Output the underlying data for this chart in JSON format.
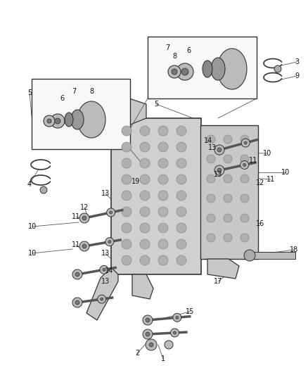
{
  "bg_color": "#ffffff",
  "figsize": [
    4.38,
    5.33
  ],
  "dpi": 100,
  "line_color": "#333333",
  "leader_color": "#555555",
  "fill_light": "#d8d8d8",
  "fill_mid": "#aaaaaa",
  "fill_dark": "#555555"
}
